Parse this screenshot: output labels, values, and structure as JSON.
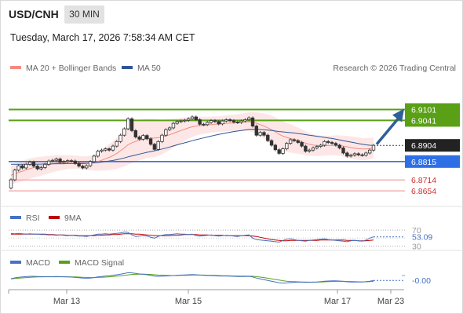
{
  "header": {
    "symbol": "USD/CNH",
    "timeframe": "30 MIN",
    "datetime": "Tuesday, March 17, 2026 7:58:34 AM CET"
  },
  "legend": {
    "ma20": "MA 20 + Bollinger Bands",
    "ma50": "MA 50",
    "credit": "Research © 2026 Trading Central",
    "ma20_color": "#f28b82",
    "ma50_color": "#2f5597"
  },
  "chart_data": [
    {
      "type": "candlestick",
      "title": "",
      "ylim": [
        6.859,
        6.928
      ],
      "x_ticks": [
        "Mar 13",
        "Mar 15",
        "Mar 17",
        "Mar 23"
      ],
      "current_price": "6.8904",
      "projection": {
        "from": 6.891,
        "to": 6.9075,
        "color": "#2f5f98"
      },
      "levels": [
        {
          "value": 6.9101,
          "label": "6.9101",
          "kind": "resistance",
          "color": "#5aa017"
        },
        {
          "value": 6.9041,
          "label": "6.9041",
          "kind": "resistance",
          "color": "#5aa017"
        },
        {
          "value": 6.8815,
          "label": "6.8815",
          "kind": "pivot",
          "color": "#3f6fd8"
        },
        {
          "value": 6.8714,
          "label": "6.8714",
          "kind": "support",
          "color": "#e05050"
        },
        {
          "value": 6.8654,
          "label": "6.8654",
          "kind": "support",
          "color": "#e05050"
        }
      ],
      "closes": [
        6.8715,
        6.8768,
        6.8792,
        6.878,
        6.88,
        6.8812,
        6.879,
        6.8775,
        6.8782,
        6.88,
        6.8818,
        6.8822,
        6.8829,
        6.8812,
        6.8815,
        6.882,
        6.8818,
        6.8805,
        6.879,
        6.878,
        6.8792,
        6.8815,
        6.8845,
        6.8872,
        6.8878,
        6.8885,
        6.8878,
        6.89,
        6.8925,
        6.896,
        6.8995,
        6.905,
        6.8985,
        6.895,
        6.8938,
        6.8958,
        6.894,
        6.891,
        6.8882,
        6.8925,
        6.896,
        6.899,
        6.9,
        6.9025,
        6.9035,
        6.9038,
        6.9042,
        6.905,
        6.906,
        6.9045,
        6.902,
        6.9018,
        6.903,
        6.904,
        6.9035,
        6.9022,
        6.9038,
        6.9045,
        6.904,
        6.9032,
        6.903,
        6.9038,
        6.9045,
        6.9055,
        6.901,
        6.896,
        6.8975,
        6.896,
        6.893,
        6.8905,
        6.888,
        6.886,
        6.8885,
        6.8915,
        6.8935,
        6.893,
        6.892,
        6.89,
        6.8872,
        6.8878,
        6.889,
        6.8898,
        6.8905,
        6.8925,
        6.892,
        6.8915,
        6.8905,
        6.889,
        6.8862,
        6.8845,
        6.885,
        6.8858,
        6.8852,
        6.885,
        6.8862,
        6.8878,
        6.8904
      ],
      "ma20": [
        6.874,
        6.8748,
        6.8755,
        6.8762,
        6.877,
        6.8776,
        6.8782,
        6.8786,
        6.879,
        6.8794,
        6.8798,
        6.8802,
        6.8806,
        6.8808,
        6.881,
        6.8812,
        6.8813,
        6.8812,
        6.881,
        6.8808,
        6.8806,
        6.8807,
        6.881,
        6.8815,
        6.8822,
        6.883,
        6.8838,
        6.8848,
        6.886,
        6.8875,
        6.889,
        6.8908,
        6.8918,
        6.8926,
        6.8932,
        6.8938,
        6.8942,
        6.8944,
        6.8944,
        6.8946,
        6.895,
        6.8956,
        6.8962,
        6.897,
        6.8978,
        6.8986,
        6.8993,
        6.9,
        6.9006,
        6.901,
        6.9012,
        6.9014,
        6.9016,
        6.9018,
        6.902,
        6.9021,
        6.9023,
        6.9025,
        6.9026,
        6.9027,
        6.9028,
        6.903,
        6.9032,
        6.9034,
        6.9032,
        6.9026,
        6.9018,
        6.901,
        6.9,
        6.899,
        6.8978,
        6.8965,
        6.8955,
        6.8948,
        6.8942,
        6.8936,
        6.893,
        6.8924,
        6.8916,
        6.891,
        6.8906,
        6.8903,
        6.8902,
        6.8902,
        6.8903,
        6.8904,
        6.8904,
        6.8903,
        6.89,
        6.8896,
        6.8892,
        6.8889,
        6.8886,
        6.8884,
        6.8884,
        6.8886,
        6.889
      ],
      "ma50": [
        6.88,
        6.88,
        6.88,
        6.88,
        6.88,
        6.88,
        6.8801,
        6.8801,
        6.8801,
        6.8802,
        6.8802,
        6.8802,
        6.8803,
        6.8803,
        6.8803,
        6.8804,
        6.8804,
        6.8804,
        6.8804,
        6.8804,
        6.8805,
        6.8806,
        6.8808,
        6.881,
        6.8812,
        6.8815,
        6.8818,
        6.8821,
        6.8825,
        6.883,
        6.8835,
        6.8841,
        6.8846,
        6.8851,
        6.8856,
        6.8861,
        6.8866,
        6.887,
        6.8874,
        6.8879,
        6.8884,
        6.8889,
        6.8895,
        6.8901,
        6.8907,
        6.8913,
        6.8918,
        6.8924,
        6.893,
        6.8935,
        6.894,
        6.8945,
        6.895,
        6.8955,
        6.896,
        6.8964,
        6.8968,
        6.8972,
        6.8976,
        6.898,
        6.8983,
        6.8986,
        6.8989,
        6.8992,
        6.8993,
        6.8992,
        6.8991,
        6.899,
        6.8988,
        6.8986,
        6.8983,
        6.898,
        6.8978,
        6.8976,
        6.8974,
        6.8972,
        6.8969,
        6.8966,
        6.8963,
        6.896,
        6.8957,
        6.8954,
        6.8951,
        6.8948,
        6.8945,
        6.8942,
        6.8938,
        6.8934,
        6.893,
        6.8926,
        6.8922,
        6.8918,
        6.8914,
        6.891,
        6.8907,
        6.8905,
        6.8904
      ],
      "band_width": [
        0.005,
        0.0052,
        0.0054,
        0.0055,
        0.0056,
        0.0056,
        0.0055,
        0.0054,
        0.0052,
        0.005,
        0.0048,
        0.0046,
        0.0044,
        0.0042,
        0.004,
        0.0038,
        0.0037,
        0.0036,
        0.0036,
        0.0036,
        0.0037,
        0.004,
        0.0044,
        0.005,
        0.0057,
        0.0064,
        0.0071,
        0.0078,
        0.0085,
        0.0093,
        0.0102,
        0.011,
        0.0112,
        0.0112,
        0.0111,
        0.011,
        0.0108,
        0.0106,
        0.0104,
        0.01,
        0.0095,
        0.009,
        0.0085,
        0.008,
        0.0075,
        0.007,
        0.0065,
        0.006,
        0.0056,
        0.0052,
        0.0049,
        0.0047,
        0.0045,
        0.0044,
        0.0043,
        0.0043,
        0.0043,
        0.0044,
        0.0045,
        0.0046,
        0.0047,
        0.0048,
        0.005,
        0.0052,
        0.0055,
        0.006,
        0.0065,
        0.007,
        0.0074,
        0.0078,
        0.008,
        0.0081,
        0.0081,
        0.008,
        0.0078,
        0.0075,
        0.0072,
        0.0069,
        0.0066,
        0.0063,
        0.006,
        0.0058,
        0.0056,
        0.0055,
        0.0054,
        0.0054,
        0.0055,
        0.0056,
        0.0058,
        0.006,
        0.0061,
        0.0062,
        0.0062,
        0.0061,
        0.006,
        0.0059,
        0.0058
      ]
    },
    {
      "type": "line",
      "legend": [
        "RSI",
        "9MA"
      ],
      "colors": {
        "RSI": "#4472c4",
        "9MA": "#c00000"
      },
      "ylim": [
        25,
        80
      ],
      "reference_lines": [
        "70",
        "30"
      ],
      "value_label": "53.09",
      "rsi": [
        62,
        61,
        62,
        61,
        60,
        61,
        60,
        60,
        59,
        59,
        58,
        58,
        57,
        58,
        57,
        56,
        57,
        56,
        55,
        55,
        54,
        56,
        58,
        60,
        60,
        61,
        60,
        61,
        62,
        63,
        65,
        64,
        58,
        54,
        55,
        56,
        55,
        52,
        50,
        54,
        57,
        59,
        59,
        60,
        61,
        60,
        60,
        59,
        60,
        56,
        55,
        56,
        57,
        58,
        56,
        55,
        56,
        57,
        56,
        55,
        54,
        56,
        57,
        58,
        50,
        46,
        45,
        44,
        43,
        42,
        41,
        40,
        44,
        47,
        48,
        46,
        44,
        43,
        42,
        44,
        45,
        46,
        47,
        48,
        46,
        45,
        44,
        43,
        42,
        41,
        43,
        44,
        43,
        42,
        45,
        50,
        53.09
      ],
      "ma9": [
        60,
        60,
        60,
        60,
        60,
        60,
        60,
        60,
        60,
        60,
        59,
        59,
        58,
        58,
        58,
        57,
        57,
        57,
        56,
        56,
        56,
        56,
        56,
        57,
        57,
        58,
        58,
        59,
        59,
        60,
        61,
        61,
        61,
        60,
        60,
        59,
        58,
        57,
        56,
        56,
        56,
        56,
        56,
        57,
        57,
        58,
        59,
        59,
        59,
        59,
        58,
        58,
        58,
        57,
        57,
        57,
        57,
        56,
        56,
        56,
        56,
        56,
        56,
        56,
        55,
        54,
        52,
        50,
        48,
        46,
        45,
        44,
        43,
        43,
        44,
        44,
        44,
        44,
        44,
        44,
        44,
        44,
        45,
        45,
        45,
        45,
        45,
        45,
        45,
        44,
        44,
        44,
        43,
        43,
        43,
        44,
        45
      ]
    },
    {
      "type": "line",
      "legend": [
        "MACD",
        "MACD Signal"
      ],
      "colors": {
        "MACD": "#4472c4",
        "MACD Signal": "#5aa017"
      },
      "ylim": [
        -0.006,
        0.006
      ],
      "value_label": "-0.00",
      "macd": [
        0.0005,
        0.001,
        0.0014,
        0.0016,
        0.0018,
        0.002,
        0.002,
        0.0019,
        0.0018,
        0.0018,
        0.0018,
        0.0018,
        0.0019,
        0.0018,
        0.0017,
        0.0016,
        0.0015,
        0.0013,
        0.0011,
        0.0009,
        0.0008,
        0.0009,
        0.0012,
        0.0016,
        0.0019,
        0.0022,
        0.0024,
        0.0027,
        0.003,
        0.0034,
        0.0038,
        0.0043,
        0.0042,
        0.0039,
        0.0035,
        0.0033,
        0.003,
        0.0026,
        0.0021,
        0.002,
        0.0021,
        0.0022,
        0.0023,
        0.0025,
        0.0027,
        0.0028,
        0.0029,
        0.003,
        0.0031,
        0.003,
        0.0028,
        0.0026,
        0.0025,
        0.0025,
        0.0024,
        0.0022,
        0.0022,
        0.0022,
        0.0021,
        0.002,
        0.0019,
        0.0019,
        0.0019,
        0.002,
        0.0016,
        0.0009,
        0.0004,
        -0.0001,
        -0.0006,
        -0.0011,
        -0.0016,
        -0.0021,
        -0.0023,
        -0.0022,
        -0.002,
        -0.0018,
        -0.0017,
        -0.0017,
        -0.0018,
        -0.0018,
        -0.0017,
        -0.0016,
        -0.0014,
        -0.0011,
        -0.001,
        -0.0009,
        -0.0009,
        -0.001,
        -0.0012,
        -0.0015,
        -0.0016,
        -0.0016,
        -0.0016,
        -0.0016,
        -0.0014,
        -0.0011,
        -0.0006
      ],
      "signal": [
        0.0004,
        0.0006,
        0.0008,
        0.001,
        0.0012,
        0.0014,
        0.0015,
        0.0016,
        0.0016,
        0.0017,
        0.0017,
        0.0017,
        0.0017,
        0.0017,
        0.0017,
        0.0017,
        0.0016,
        0.0016,
        0.0015,
        0.0014,
        0.0013,
        0.0012,
        0.0012,
        0.0013,
        0.0014,
        0.0015,
        0.0017,
        0.0019,
        0.0021,
        0.0023,
        0.0026,
        0.0029,
        0.0032,
        0.0033,
        0.0034,
        0.0034,
        0.0033,
        0.0032,
        0.003,
        0.0028,
        0.0027,
        0.0026,
        0.0025,
        0.0025,
        0.0025,
        0.0026,
        0.0026,
        0.0027,
        0.0028,
        0.0028,
        0.0028,
        0.0028,
        0.0027,
        0.0027,
        0.0026,
        0.0025,
        0.0024,
        0.0024,
        0.0023,
        0.0022,
        0.0022,
        0.0021,
        0.0021,
        0.0021,
        0.002,
        0.0018,
        0.0015,
        0.0012,
        0.0008,
        0.0004,
        0.0,
        -0.0004,
        -0.0008,
        -0.0011,
        -0.0013,
        -0.0014,
        -0.0015,
        -0.0016,
        -0.0016,
        -0.0017,
        -0.0017,
        -0.0017,
        -0.0016,
        -0.0015,
        -0.0014,
        -0.0013,
        -0.0012,
        -0.0012,
        -0.0012,
        -0.0013,
        -0.0013,
        -0.0014,
        -0.0015,
        -0.0015,
        -0.0015,
        -0.0014,
        -0.0012
      ]
    }
  ]
}
